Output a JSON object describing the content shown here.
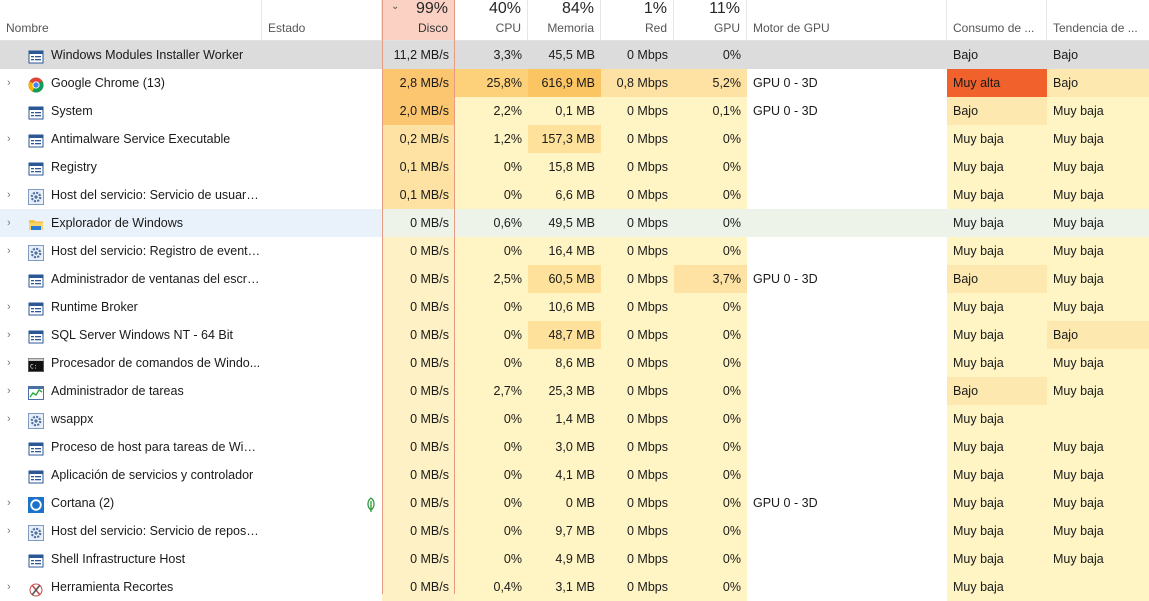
{
  "header": {
    "name": {
      "label": "Nombre"
    },
    "status": {
      "label": "Estado"
    },
    "disk": {
      "label": "Disco",
      "pct": "99%",
      "sort_icon": "chevron-down-icon"
    },
    "cpu": {
      "label": "CPU",
      "pct": "40%"
    },
    "memory": {
      "label": "Memoria",
      "pct": "84%"
    },
    "network": {
      "label": "Red",
      "pct": "1%"
    },
    "gpu": {
      "label": "GPU",
      "pct": "11%"
    },
    "gpu_engine": {
      "label": "Motor de GPU"
    },
    "power": {
      "label": "Consumo de ..."
    },
    "power_trend": {
      "label": "Tendencia de ..."
    }
  },
  "heat_colors": {
    "disk_max": "#fbb15c",
    "disk_mid": "#fcc570",
    "disk_low": "#fde2a3",
    "disk_base": "#fef1c6",
    "cpu_hi": "#fcd17a",
    "cpu_base": "#fff4c4",
    "mem_hi": "#fcc564",
    "mem_mid": "#fee29c",
    "mem_base": "#fff4c4",
    "net_hi": "#fde2a3",
    "net_base": "#fff4c4",
    "gpu_hi": "#fde2a3",
    "gpu_base": "#fff4c4",
    "power_very_high": "#f0612b",
    "power_low": "#fde9b0",
    "power_base": "#fff4c4"
  },
  "rows": [
    {
      "name": "Windows Modules Installer Worker",
      "icon": "window-app-icon",
      "expandable": false,
      "disk": "11,2 MB/s",
      "cpu": "3,3%",
      "memory": "45,5 MB",
      "network": "0 Mbps",
      "gpu": "0%",
      "gpu_engine": "",
      "power": "Bajo",
      "trend": "Bajo",
      "selected": true
    },
    {
      "name": "Google Chrome (13)",
      "icon": "chrome-icon",
      "expandable": true,
      "disk": "2,8 MB/s",
      "cpu": "25,8%",
      "memory": "616,9 MB",
      "network": "0,8 Mbps",
      "gpu": "5,2%",
      "gpu_engine": "GPU 0 - 3D",
      "power": "Muy alta",
      "trend": "Bajo"
    },
    {
      "name": "System",
      "icon": "window-app-icon",
      "expandable": false,
      "disk": "2,0 MB/s",
      "cpu": "2,2%",
      "memory": "0,1 MB",
      "network": "0 Mbps",
      "gpu": "0,1%",
      "gpu_engine": "GPU 0 - 3D",
      "power": "Bajo",
      "trend": "Muy baja"
    },
    {
      "name": "Antimalware Service Executable",
      "icon": "window-app-icon",
      "expandable": true,
      "disk": "0,2 MB/s",
      "cpu": "1,2%",
      "memory": "157,3 MB",
      "network": "0 Mbps",
      "gpu": "0%",
      "gpu_engine": "",
      "power": "Muy baja",
      "trend": "Muy baja"
    },
    {
      "name": "Registry",
      "icon": "window-app-icon",
      "expandable": false,
      "disk": "0,1 MB/s",
      "cpu": "0%",
      "memory": "15,8 MB",
      "network": "0 Mbps",
      "gpu": "0%",
      "gpu_engine": "",
      "power": "Muy baja",
      "trend": "Muy baja"
    },
    {
      "name": "Host del servicio: Servicio de usuario ...",
      "icon": "gear-icon",
      "expandable": true,
      "disk": "0,1 MB/s",
      "cpu": "0%",
      "memory": "6,6 MB",
      "network": "0 Mbps",
      "gpu": "0%",
      "gpu_engine": "",
      "power": "Muy baja",
      "trend": "Muy baja"
    },
    {
      "name": "Explorador de Windows",
      "icon": "folder-icon",
      "expandable": true,
      "disk": "0 MB/s",
      "cpu": "0,6%",
      "memory": "49,5 MB",
      "network": "0 Mbps",
      "gpu": "0%",
      "gpu_engine": "",
      "power": "Muy baja",
      "trend": "Muy baja",
      "hover": true
    },
    {
      "name": "Host del servicio: Registro de eventos...",
      "icon": "gear-icon",
      "expandable": true,
      "disk": "0 MB/s",
      "cpu": "0%",
      "memory": "16,4 MB",
      "network": "0 Mbps",
      "gpu": "0%",
      "gpu_engine": "",
      "power": "Muy baja",
      "trend": "Muy baja"
    },
    {
      "name": "Administrador de ventanas del escrit...",
      "icon": "window-app-icon",
      "expandable": false,
      "disk": "0 MB/s",
      "cpu": "2,5%",
      "memory": "60,5 MB",
      "network": "0 Mbps",
      "gpu": "3,7%",
      "gpu_engine": "GPU 0 - 3D",
      "power": "Bajo",
      "trend": "Muy baja"
    },
    {
      "name": "Runtime Broker",
      "icon": "window-app-icon",
      "expandable": true,
      "disk": "0 MB/s",
      "cpu": "0%",
      "memory": "10,6 MB",
      "network": "0 Mbps",
      "gpu": "0%",
      "gpu_engine": "",
      "power": "Muy baja",
      "trend": "Muy baja"
    },
    {
      "name": "SQL Server Windows NT - 64 Bit",
      "icon": "window-app-icon",
      "expandable": true,
      "disk": "0 MB/s",
      "cpu": "0%",
      "memory": "48,7 MB",
      "network": "0 Mbps",
      "gpu": "0%",
      "gpu_engine": "",
      "power": "Muy baja",
      "trend": "Bajo"
    },
    {
      "name": "Procesador de comandos de Windo...",
      "icon": "cmd-icon",
      "expandable": true,
      "disk": "0 MB/s",
      "cpu": "0%",
      "memory": "8,6 MB",
      "network": "0 Mbps",
      "gpu": "0%",
      "gpu_engine": "",
      "power": "Muy baja",
      "trend": "Muy baja"
    },
    {
      "name": "Administrador de tareas",
      "icon": "task-manager-icon",
      "expandable": true,
      "disk": "0 MB/s",
      "cpu": "2,7%",
      "memory": "25,3 MB",
      "network": "0 Mbps",
      "gpu": "0%",
      "gpu_engine": "",
      "power": "Bajo",
      "trend": "Muy baja"
    },
    {
      "name": "wsappx",
      "icon": "gear-icon",
      "expandable": true,
      "disk": "0 MB/s",
      "cpu": "0%",
      "memory": "1,4 MB",
      "network": "0 Mbps",
      "gpu": "0%",
      "gpu_engine": "",
      "power": "Muy baja",
      "trend": ""
    },
    {
      "name": "Proceso de host para tareas de Wind...",
      "icon": "window-app-icon",
      "expandable": false,
      "disk": "0 MB/s",
      "cpu": "0%",
      "memory": "3,0 MB",
      "network": "0 Mbps",
      "gpu": "0%",
      "gpu_engine": "",
      "power": "Muy baja",
      "trend": "Muy baja"
    },
    {
      "name": "Aplicación de servicios y controlador",
      "icon": "window-app-icon",
      "expandable": false,
      "disk": "0 MB/s",
      "cpu": "0%",
      "memory": "4,1 MB",
      "network": "0 Mbps",
      "gpu": "0%",
      "gpu_engine": "",
      "power": "Muy baja",
      "trend": "Muy baja"
    },
    {
      "name": "Cortana (2)",
      "icon": "cortana-icon",
      "expandable": true,
      "disk": "0 MB/s",
      "cpu": "0%",
      "memory": "0 MB",
      "network": "0 Mbps",
      "gpu": "0%",
      "gpu_engine": "GPU 0 - 3D",
      "power": "Muy baja",
      "trend": "Muy baja",
      "status_icon": "leaf-icon"
    },
    {
      "name": "Host del servicio: Servicio de reposito...",
      "icon": "gear-icon",
      "expandable": true,
      "disk": "0 MB/s",
      "cpu": "0%",
      "memory": "9,7 MB",
      "network": "0 Mbps",
      "gpu": "0%",
      "gpu_engine": "",
      "power": "Muy baja",
      "trend": "Muy baja"
    },
    {
      "name": "Shell Infrastructure Host",
      "icon": "window-app-icon",
      "expandable": false,
      "disk": "0 MB/s",
      "cpu": "0%",
      "memory": "4,9 MB",
      "network": "0 Mbps",
      "gpu": "0%",
      "gpu_engine": "",
      "power": "Muy baja",
      "trend": "Muy baja"
    },
    {
      "name": "Herramienta Recortes",
      "icon": "snipping-tool-icon",
      "expandable": true,
      "disk": "0 MB/s",
      "cpu": "0,4%",
      "memory": "3,1 MB",
      "network": "0 Mbps",
      "gpu": "0%",
      "gpu_engine": "",
      "power": "Muy baja",
      "trend": ""
    }
  ]
}
